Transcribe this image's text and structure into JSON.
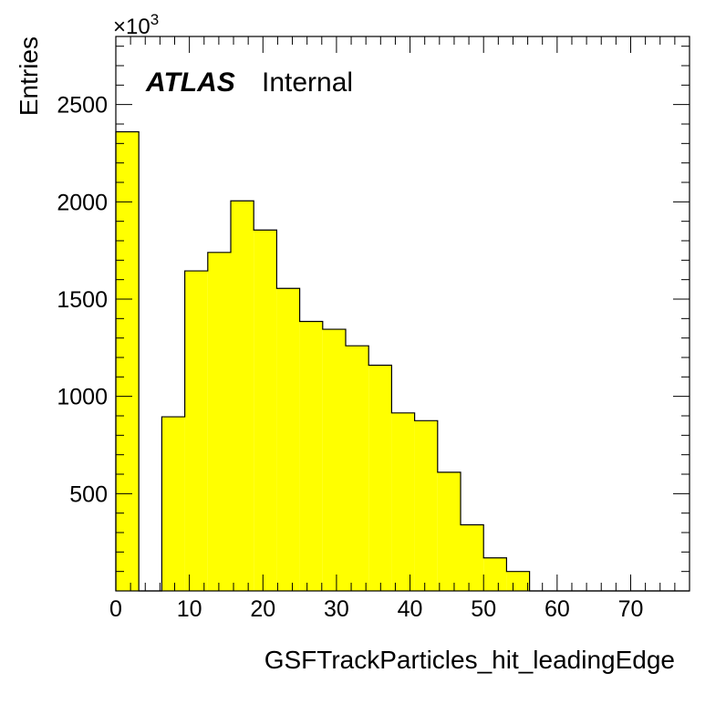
{
  "chart_data": {
    "type": "bar",
    "title": "",
    "xlabel": "GSFTrackParticles_hit_leadingEdge",
    "ylabel": "Entries",
    "y_multiplier_label": "×10",
    "y_multiplier_exponent": "3",
    "xlim": [
      0,
      78
    ],
    "ylim": [
      0,
      2850
    ],
    "x_ticks": [
      0,
      10,
      20,
      30,
      40,
      50,
      60,
      70
    ],
    "y_ticks": [
      500,
      1000,
      1500,
      2000,
      2500
    ],
    "bin_edges": [
      0,
      3.125,
      6.25,
      9.375,
      12.5,
      15.625,
      18.75,
      21.875,
      25,
      28.125,
      31.25,
      34.375,
      37.5,
      40.625,
      43.75,
      46.875,
      50,
      53.125,
      56.25,
      59.375,
      62.5,
      65.625,
      68.75,
      71.875,
      75,
      78.125
    ],
    "values": [
      2360,
      0,
      895,
      1645,
      1740,
      2005,
      1855,
      1555,
      1385,
      1345,
      1260,
      1160,
      915,
      875,
      610,
      340,
      170,
      100,
      0,
      0,
      0,
      0,
      0,
      0,
      0
    ],
    "fill_color": "#ffff00",
    "line_color": "#000000",
    "grid": false,
    "legend": "none"
  },
  "annotation": {
    "atlas": "ATLAS",
    "internal": "Internal"
  }
}
